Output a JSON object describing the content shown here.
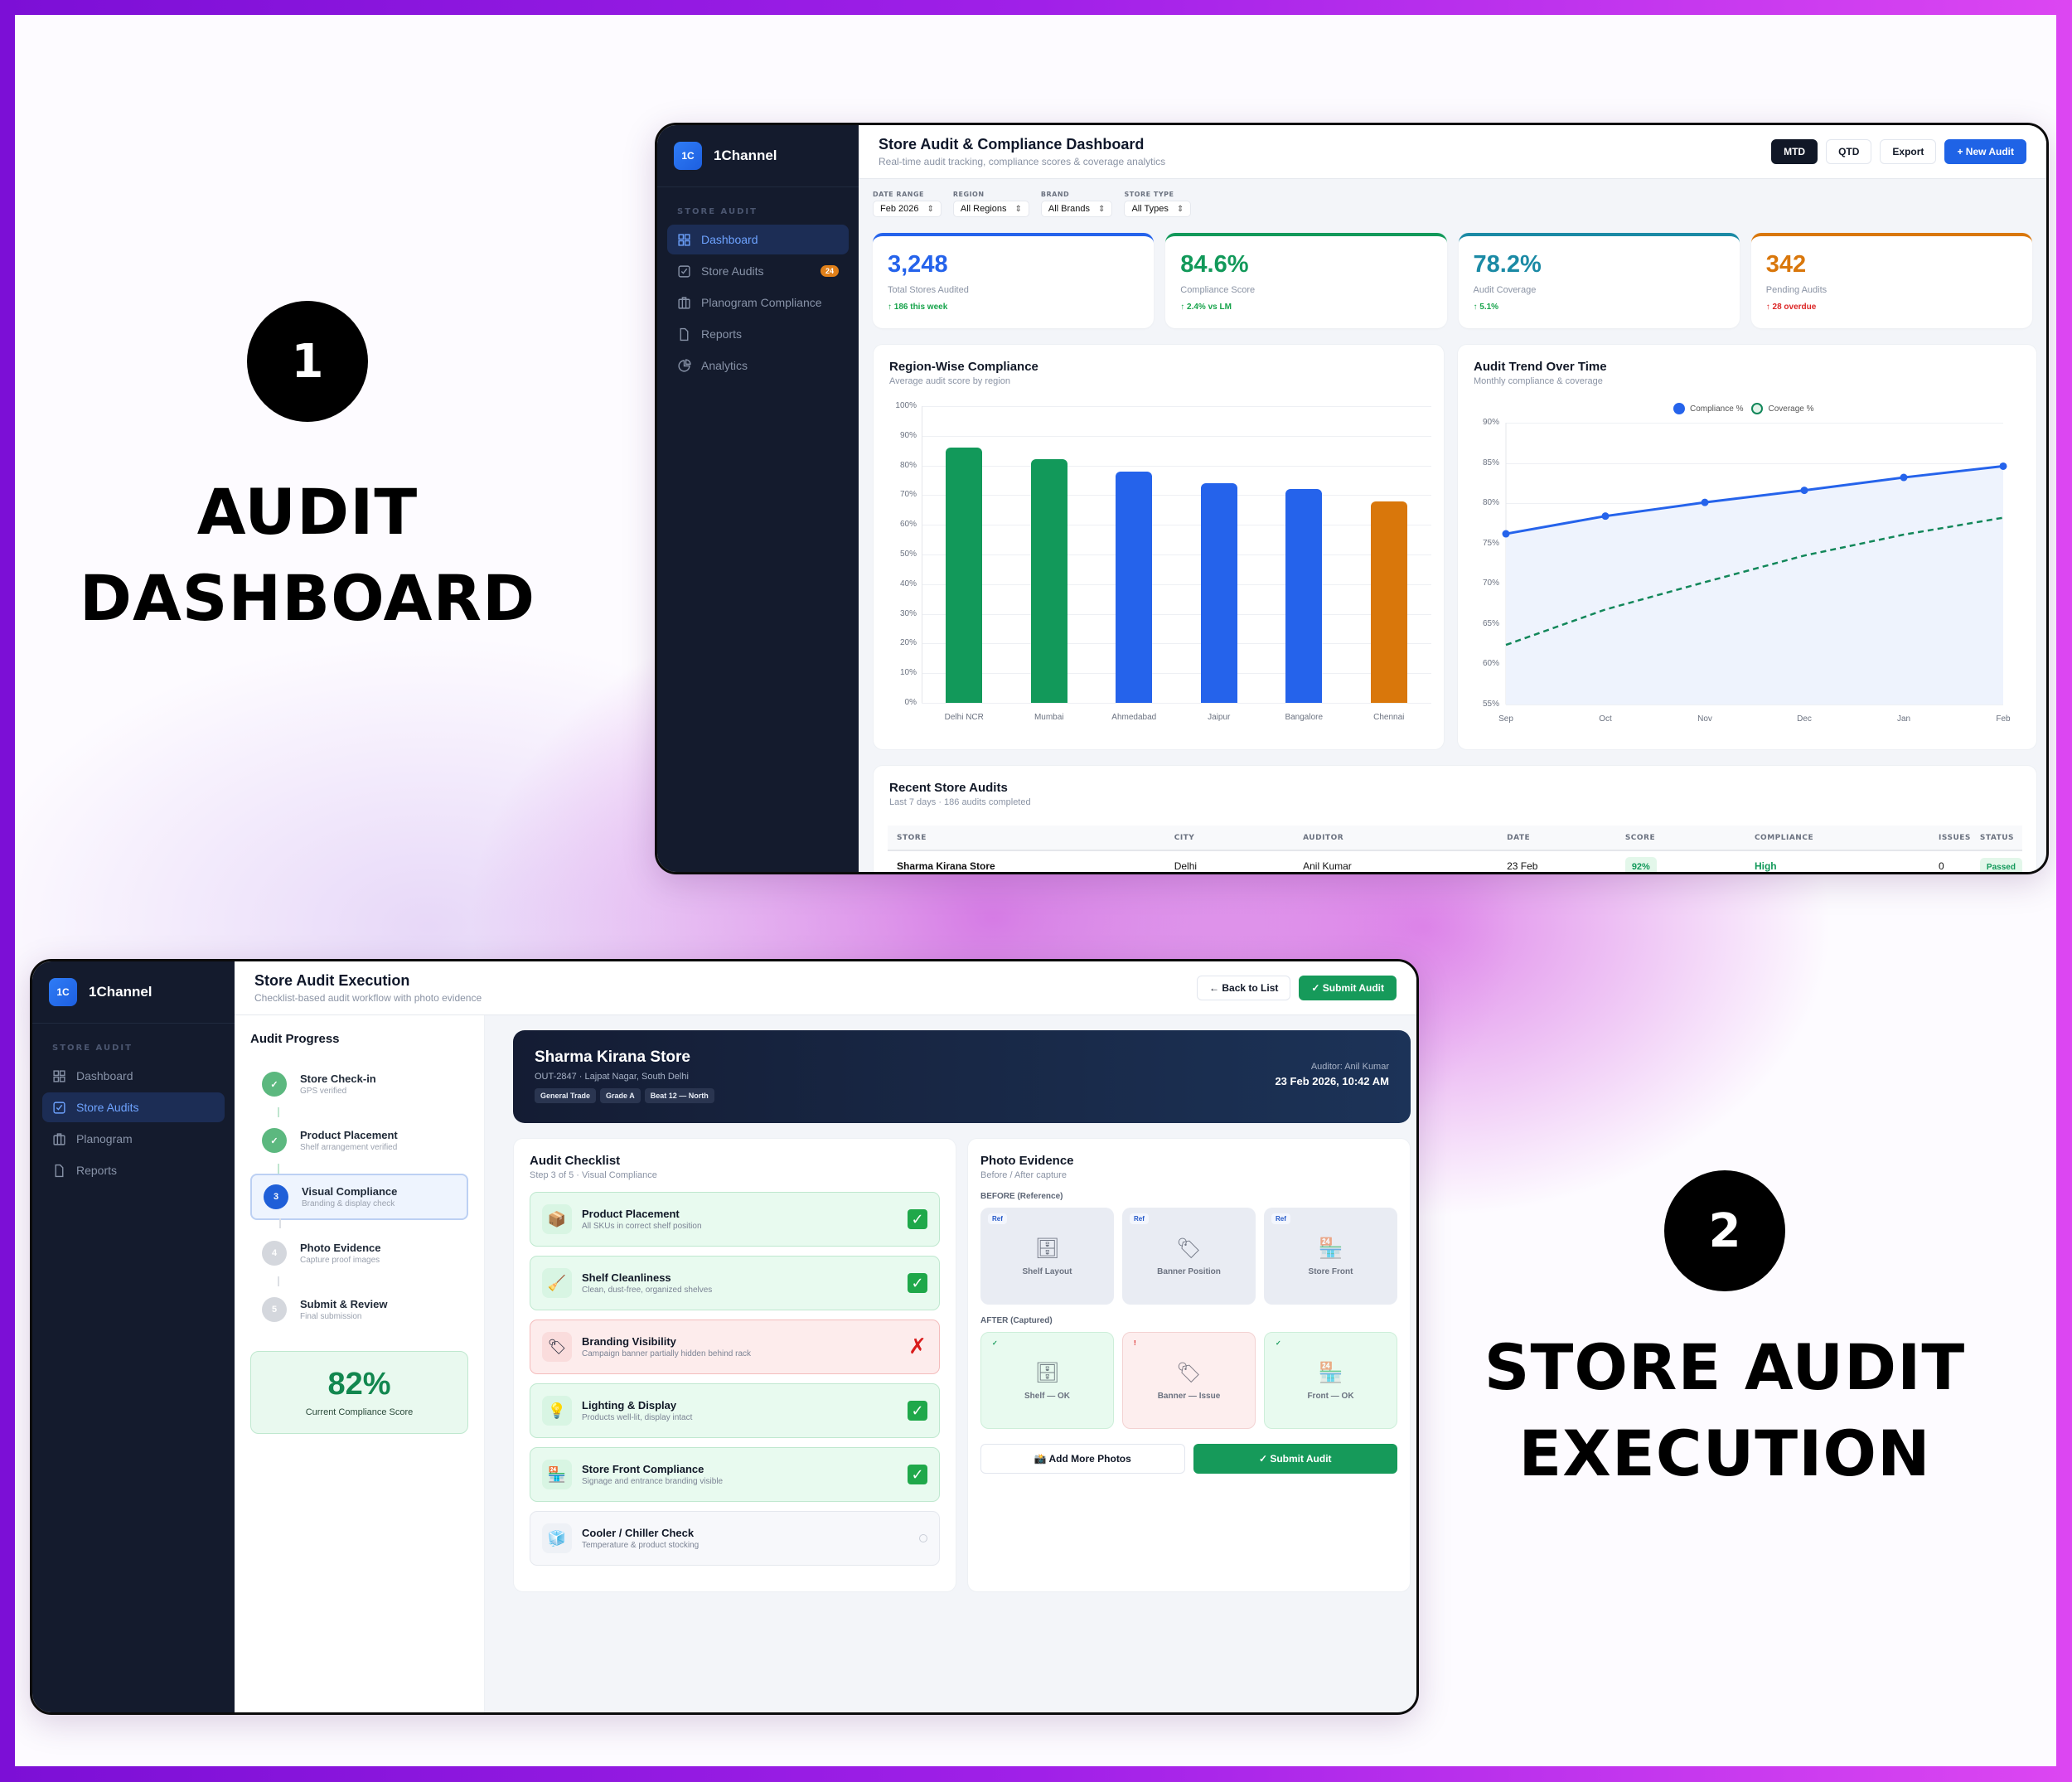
{
  "labels": {
    "section1": {
      "number": "1",
      "title_line1": "AUDIT",
      "title_line2": "DASHBOARD"
    },
    "section2": {
      "number": "2",
      "title_line1": "STORE AUDIT",
      "title_line2": "EXECUTION"
    }
  },
  "colors": {
    "blue": "#2563eb",
    "green": "#12995a",
    "teal": "#1b8aa5",
    "orange": "#d9770b",
    "red": "#dc2626",
    "sidebar": "#141b2d"
  },
  "dashboard": {
    "brand": {
      "logo": "1C",
      "name": "1Channel"
    },
    "sidebar": {
      "section_label": "STORE AUDIT",
      "items": [
        {
          "label": "Dashboard",
          "icon": "grid-icon",
          "active": true
        },
        {
          "label": "Store Audits",
          "icon": "checkbox-icon",
          "badge": "24"
        },
        {
          "label": "Planogram Compliance",
          "icon": "planogram-icon"
        },
        {
          "label": "Reports",
          "icon": "document-icon"
        },
        {
          "label": "Analytics",
          "icon": "pie-chart-icon"
        }
      ]
    },
    "header": {
      "title": "Store Audit & Compliance Dashboard",
      "subtitle": "Real-time audit tracking, compliance scores & coverage analytics",
      "period_buttons": [
        "MTD",
        "QTD"
      ],
      "active_period": "MTD",
      "export_label": "Export",
      "new_audit_label": "+ New Audit"
    },
    "filters": [
      {
        "label": "DATE RANGE",
        "value": "Feb 2026"
      },
      {
        "label": "REGION",
        "value": "All Regions"
      },
      {
        "label": "BRAND",
        "value": "All Brands"
      },
      {
        "label": "STORE TYPE",
        "value": "All Types"
      }
    ],
    "kpis": [
      {
        "value": "3,248",
        "label": "Total Stores Audited",
        "delta": "↑ 186 this week",
        "color": "#2563eb",
        "delta_color": "#16a34a"
      },
      {
        "value": "84.6%",
        "label": "Compliance Score",
        "delta": "↑ 2.4% vs LM",
        "color": "#12995a",
        "delta_color": "#16a34a"
      },
      {
        "value": "78.2%",
        "label": "Audit Coverage",
        "delta": "↑ 5.1%",
        "color": "#1b8aa5",
        "delta_color": "#16a34a"
      },
      {
        "value": "342",
        "label": "Pending Audits",
        "delta": "↑ 28 overdue",
        "color": "#d9770b",
        "delta_color": "#dc2626"
      }
    ],
    "region_chart": {
      "title": "Region-Wise Compliance",
      "subtitle": "Average audit score by region"
    },
    "trend_chart": {
      "title": "Audit Trend Over Time",
      "subtitle": "Monthly compliance & coverage",
      "legend": [
        "Compliance %",
        "Coverage %"
      ]
    },
    "recent": {
      "title": "Recent Store Audits",
      "subtitle": "Last 7 days · 186 audits completed",
      "columns": [
        "STORE",
        "CITY",
        "AUDITOR",
        "DATE",
        "SCORE",
        "COMPLIANCE",
        "ISSUES",
        "STATUS"
      ],
      "rows": [
        {
          "store": "Sharma Kirana Store",
          "city": "Delhi",
          "auditor": "Anil Kumar",
          "date": "23 Feb",
          "score": "92%",
          "compliance": "High",
          "issues": "0",
          "status": "Passed"
        }
      ]
    }
  },
  "chart_data": [
    {
      "type": "bar",
      "title": "Region-Wise Compliance",
      "subtitle": "Average audit score by region",
      "categories": [
        "Delhi NCR",
        "Mumbai",
        "Ahmedabad",
        "Jaipur",
        "Bangalore",
        "Chennai"
      ],
      "values": [
        86,
        82,
        78,
        74,
        72,
        68
      ],
      "bar_colors": [
        "#12995a",
        "#12995a",
        "#2563eb",
        "#2563eb",
        "#2563eb",
        "#d9770b"
      ],
      "xlabel": "",
      "ylabel": "",
      "yticks": [
        "0%",
        "10%",
        "20%",
        "30%",
        "40%",
        "50%",
        "60%",
        "70%",
        "80%",
        "90%",
        "100%"
      ],
      "ylim": [
        0,
        100
      ],
      "grid": true,
      "legend": "none"
    },
    {
      "type": "line",
      "title": "Audit Trend Over Time",
      "subtitle": "Monthly compliance & coverage",
      "x": [
        "Sep",
        "Oct",
        "Nov",
        "Dec",
        "Jan",
        "Feb"
      ],
      "series": [
        {
          "name": "Compliance %",
          "values": [
            76.2,
            78.4,
            80.1,
            81.6,
            83.2,
            84.6
          ],
          "color": "#2563eb",
          "style": "solid, markers, filled area"
        },
        {
          "name": "Coverage %",
          "values": [
            62.4,
            66.8,
            70.2,
            73.5,
            76.1,
            78.2
          ],
          "color": "#12875a",
          "style": "dashed"
        }
      ],
      "yticks": [
        "55%",
        "60%",
        "65%",
        "70%",
        "75%",
        "80%",
        "85%",
        "90%"
      ],
      "ylim": [
        55,
        90
      ],
      "grid": true,
      "legend_position": "top"
    }
  ],
  "execution": {
    "brand": {
      "logo": "1C",
      "name": "1Channel"
    },
    "sidebar": {
      "section_label": "STORE AUDIT",
      "items": [
        {
          "label": "Dashboard",
          "icon": "grid-icon"
        },
        {
          "label": "Store Audits",
          "icon": "checkbox-icon",
          "active": true
        },
        {
          "label": "Planogram",
          "icon": "planogram-icon"
        },
        {
          "label": "Reports",
          "icon": "document-icon"
        }
      ]
    },
    "header": {
      "title": "Store Audit Execution",
      "subtitle": "Checklist-based audit workflow with photo evidence",
      "back_label": "← Back to List",
      "submit_label": "✓ Submit Audit"
    },
    "progress": {
      "title": "Audit Progress",
      "steps": [
        {
          "num": "✓",
          "title": "Store Check-in",
          "sub": "GPS verified",
          "state": "done"
        },
        {
          "num": "✓",
          "title": "Product Placement",
          "sub": "Shelf arrangement verified",
          "state": "done"
        },
        {
          "num": "3",
          "title": "Visual Compliance",
          "sub": "Branding & display check",
          "state": "active"
        },
        {
          "num": "4",
          "title": "Photo Evidence",
          "sub": "Capture proof images",
          "state": "todo"
        },
        {
          "num": "5",
          "title": "Submit & Review",
          "sub": "Final submission",
          "state": "todo"
        }
      ],
      "score_value": "82%",
      "score_label": "Current Compliance Score"
    },
    "store": {
      "name": "Sharma Kirana Store",
      "sub": "OUT-2847 · Lajpat Nagar, South Delhi",
      "tags": [
        "General Trade",
        "Grade A",
        "Beat 12 — North"
      ],
      "auditor": "Auditor: Anil Kumar",
      "datetime": "23 Feb 2026, 10:42 AM"
    },
    "checklist": {
      "title": "Audit Checklist",
      "subtitle": "Step 3 of 5 · Visual Compliance",
      "items": [
        {
          "icon": "📦",
          "title": "Product Placement",
          "sub": "All SKUs in correct shelf position",
          "state": "pass",
          "mark": "✓"
        },
        {
          "icon": "🧹",
          "title": "Shelf Cleanliness",
          "sub": "Clean, dust-free, organized shelves",
          "state": "pass",
          "mark": "✓"
        },
        {
          "icon": "🏷",
          "title": "Branding Visibility",
          "sub": "Campaign banner partially hidden behind rack",
          "state": "fail",
          "mark": "✗"
        },
        {
          "icon": "💡",
          "title": "Lighting & Display",
          "sub": "Products well-lit, display intact",
          "state": "pass",
          "mark": "✓"
        },
        {
          "icon": "🏪",
          "title": "Store Front Compliance",
          "sub": "Signage and entrance branding visible",
          "state": "pass",
          "mark": "✓"
        },
        {
          "icon": "🧊",
          "title": "Cooler / Chiller Check",
          "sub": "Temperature & product stocking",
          "state": "pend",
          "mark": ""
        }
      ]
    },
    "photos": {
      "title": "Photo Evidence",
      "subtitle": "Before / After capture",
      "before_label": "BEFORE (Reference)",
      "after_label": "AFTER (Captured)",
      "before": [
        {
          "tag": "Ref",
          "icon": "🗄",
          "caption": "Shelf Layout"
        },
        {
          "tag": "Ref",
          "icon": "🏷",
          "caption": "Banner Position"
        },
        {
          "tag": "Ref",
          "icon": "🏪",
          "caption": "Store Front"
        }
      ],
      "after": [
        {
          "tag": "✓",
          "icon": "🗄",
          "caption": "Shelf — OK",
          "state": "ok"
        },
        {
          "tag": "!",
          "icon": "🏷",
          "caption": "Banner — Issue",
          "state": "bad"
        },
        {
          "tag": "✓",
          "icon": "🏪",
          "caption": "Front — OK",
          "state": "ok"
        }
      ],
      "add_label": "📸 Add More Photos",
      "submit_label": "✓ Submit Audit"
    }
  }
}
